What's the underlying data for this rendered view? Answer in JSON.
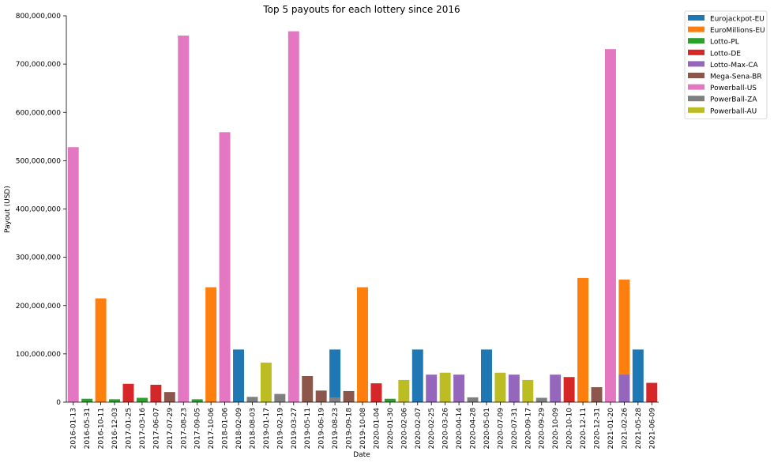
{
  "chart_data": {
    "type": "bar",
    "title": "Top 5 payouts for each lottery since 2016",
    "xlabel": "Date",
    "ylabel": "Payout (USD)",
    "ylim": [
      0,
      800000000
    ],
    "yticks": [
      "0",
      "100,000,000",
      "200,000,000",
      "300,000,000",
      "400,000,000",
      "500,000,000",
      "600,000,000",
      "700,000,000",
      "800,000,000"
    ],
    "ytick_values": [
      0,
      100000000,
      200000000,
      300000000,
      400000000,
      500000000,
      600000000,
      700000000,
      800000000
    ],
    "grid": false,
    "legend_position": "outside top-right",
    "series": [
      {
        "name": "Eurojackpot-EU",
        "color": "#1f77b4"
      },
      {
        "name": "EuroMillions-EU",
        "color": "#ff7f0e"
      },
      {
        "name": "Lotto-PL",
        "color": "#2ca02c"
      },
      {
        "name": "Lotto-DE",
        "color": "#d62728"
      },
      {
        "name": "Lotto-Max-CA",
        "color": "#9467bd"
      },
      {
        "name": "Mega-Sena-BR",
        "color": "#8c564b"
      },
      {
        "name": "Powerball-US",
        "color": "#e377c2"
      },
      {
        "name": "PowerBall-ZA",
        "color": "#7f7f7f"
      },
      {
        "name": "Powerball-AU",
        "color": "#bcbd22"
      }
    ],
    "categories": [
      "2016-01-13",
      "2016-05-31",
      "2016-10-11",
      "2016-12-03",
      "2017-01-25",
      "2017-03-16",
      "2017-06-07",
      "2017-07-29",
      "2017-08-23",
      "2017-09-05",
      "2017-10-06",
      "2018-01-06",
      "2018-02-09",
      "2018-08-03",
      "2019-01-17",
      "2019-02-19",
      "2019-03-27",
      "2019-05-11",
      "2019-06-19",
      "2019-08-23",
      "2019-09-18",
      "2019-10-08",
      "2020-01-04",
      "2020-01-30",
      "2020-02-06",
      "2020-02-07",
      "2020-02-25",
      "2020-03-26",
      "2020-04-14",
      "2020-04-28",
      "2020-05-01",
      "2020-07-09",
      "2020-07-31",
      "2020-09-17",
      "2020-09-29",
      "2020-10-09",
      "2020-10-10",
      "2020-12-11",
      "2020-12-31",
      "2021-01-20",
      "2021-02-26",
      "2021-05-28",
      "2021-06-09"
    ],
    "points": [
      {
        "date": "2016-01-13",
        "series": "Powerball-US",
        "value": 528000000
      },
      {
        "date": "2016-05-31",
        "series": "Lotto-PL",
        "value": 7000000
      },
      {
        "date": "2016-10-11",
        "series": "EuroMillions-EU",
        "value": 215000000
      },
      {
        "date": "2016-12-03",
        "series": "Lotto-PL",
        "value": 6000000
      },
      {
        "date": "2017-01-25",
        "series": "Lotto-DE",
        "value": 38000000
      },
      {
        "date": "2017-03-16",
        "series": "Lotto-PL",
        "value": 9000000
      },
      {
        "date": "2017-06-07",
        "series": "Lotto-DE",
        "value": 36000000
      },
      {
        "date": "2017-07-29",
        "series": "Mega-Sena-BR",
        "value": 21000000
      },
      {
        "date": "2017-08-23",
        "series": "Powerball-US",
        "value": 759000000
      },
      {
        "date": "2017-09-05",
        "series": "Lotto-PL",
        "value": 6000000
      },
      {
        "date": "2017-10-06",
        "series": "EuroMillions-EU",
        "value": 238000000
      },
      {
        "date": "2018-01-06",
        "series": "Powerball-US",
        "value": 559000000
      },
      {
        "date": "2018-02-09",
        "series": "Eurojackpot-EU",
        "value": 109000000
      },
      {
        "date": "2018-08-03",
        "series": "PowerBall-ZA",
        "value": 11000000
      },
      {
        "date": "2019-01-17",
        "series": "Powerball-AU",
        "value": 82000000
      },
      {
        "date": "2019-02-19",
        "series": "PowerBall-ZA",
        "value": 17000000
      },
      {
        "date": "2019-03-27",
        "series": "Powerball-US",
        "value": 768000000
      },
      {
        "date": "2019-05-11",
        "series": "Mega-Sena-BR",
        "value": 54000000
      },
      {
        "date": "2019-06-19",
        "series": "Mega-Sena-BR",
        "value": 24000000
      },
      {
        "date": "2019-08-23",
        "series": "Eurojackpot-EU",
        "value": 109000000
      },
      {
        "date": "2019-08-23",
        "series": "PowerBall-ZA",
        "value": 10000000
      },
      {
        "date": "2019-09-18",
        "series": "Mega-Sena-BR",
        "value": 23000000
      },
      {
        "date": "2019-10-08",
        "series": "EuroMillions-EU",
        "value": 238000000
      },
      {
        "date": "2020-01-04",
        "series": "Lotto-DE",
        "value": 39000000
      },
      {
        "date": "2020-01-30",
        "series": "Lotto-PL",
        "value": 7000000
      },
      {
        "date": "2020-02-06",
        "series": "Powerball-AU",
        "value": 46000000
      },
      {
        "date": "2020-02-07",
        "series": "Eurojackpot-EU",
        "value": 109000000
      },
      {
        "date": "2020-02-25",
        "series": "Lotto-Max-CA",
        "value": 57000000
      },
      {
        "date": "2020-03-26",
        "series": "Powerball-AU",
        "value": 61000000
      },
      {
        "date": "2020-04-14",
        "series": "Lotto-Max-CA",
        "value": 57000000
      },
      {
        "date": "2020-04-28",
        "series": "PowerBall-ZA",
        "value": 10000000
      },
      {
        "date": "2020-05-01",
        "series": "Eurojackpot-EU",
        "value": 109000000
      },
      {
        "date": "2020-07-09",
        "series": "Powerball-AU",
        "value": 61000000
      },
      {
        "date": "2020-07-31",
        "series": "Lotto-Max-CA",
        "value": 57000000
      },
      {
        "date": "2020-09-17",
        "series": "Powerball-AU",
        "value": 46000000
      },
      {
        "date": "2020-09-29",
        "series": "PowerBall-ZA",
        "value": 9000000
      },
      {
        "date": "2020-10-09",
        "series": "Lotto-Max-CA",
        "value": 57000000
      },
      {
        "date": "2020-10-10",
        "series": "Lotto-DE",
        "value": 52000000
      },
      {
        "date": "2020-12-11",
        "series": "EuroMillions-EU",
        "value": 257000000
      },
      {
        "date": "2020-12-31",
        "series": "Mega-Sena-BR",
        "value": 31000000
      },
      {
        "date": "2021-01-20",
        "series": "Powerball-US",
        "value": 731000000
      },
      {
        "date": "2021-02-26",
        "series": "EuroMillions-EU",
        "value": 254000000
      },
      {
        "date": "2021-02-26",
        "series": "Lotto-Max-CA",
        "value": 57000000
      },
      {
        "date": "2021-05-28",
        "series": "Eurojackpot-EU",
        "value": 109000000
      },
      {
        "date": "2021-06-09",
        "series": "Lotto-DE",
        "value": 40000000
      }
    ]
  }
}
